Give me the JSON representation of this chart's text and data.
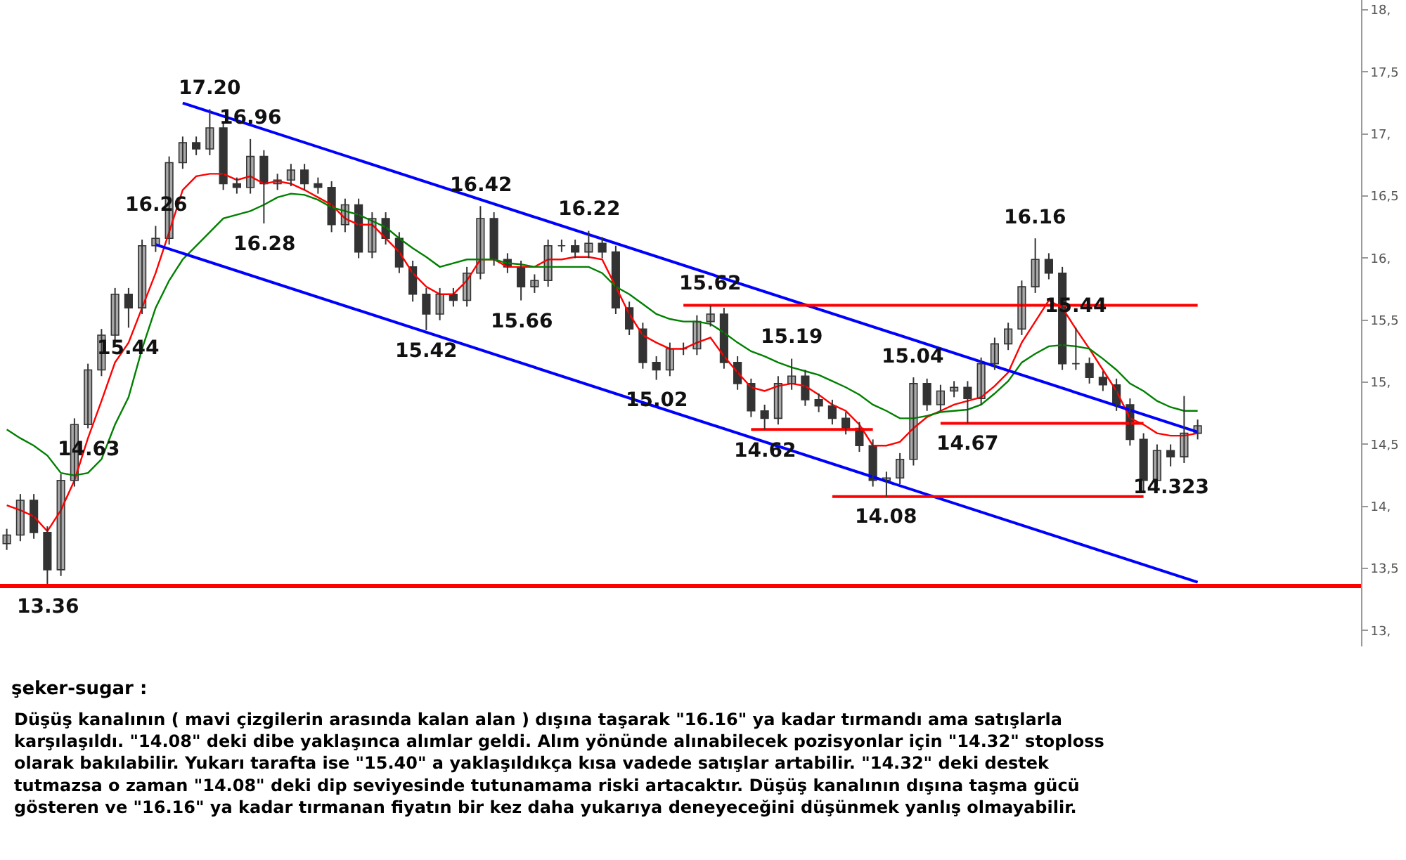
{
  "chart_data": {
    "type": "candlestick",
    "title": "şeker-sugar :",
    "categories": [
      null,
      null,
      null,
      null,
      null,
      null,
      null,
      null,
      null,
      null,
      null,
      null,
      null,
      null,
      null,
      null,
      null,
      null,
      null,
      null,
      null,
      null,
      null,
      null,
      null,
      null,
      null,
      null,
      null,
      null,
      null,
      null,
      null,
      null,
      null,
      null,
      null,
      null,
      null,
      null,
      null,
      null,
      null,
      null,
      null,
      null,
      null,
      null,
      null,
      null,
      null,
      null,
      null,
      null,
      null,
      null,
      null,
      null,
      null,
      null,
      null,
      null,
      null,
      null,
      null,
      null,
      null,
      null,
      null,
      null,
      null,
      null,
      null,
      null,
      null,
      null,
      null,
      null,
      null,
      null,
      null,
      null,
      null,
      null,
      null,
      null,
      null,
      null,
      null
    ],
    "color": "#333333",
    "ohlc": [
      [
        13.7,
        13.82,
        13.65,
        13.77
      ],
      [
        13.77,
        14.1,
        13.72,
        14.05
      ],
      [
        14.05,
        14.1,
        13.74,
        13.79
      ],
      [
        13.79,
        13.84,
        13.36,
        13.49
      ],
      [
        13.49,
        14.26,
        13.44,
        14.21
      ],
      [
        14.21,
        14.71,
        14.16,
        14.66
      ],
      [
        14.66,
        15.15,
        14.63,
        15.1
      ],
      [
        15.1,
        15.43,
        15.05,
        15.38
      ],
      [
        15.38,
        15.76,
        15.33,
        15.71
      ],
      [
        15.71,
        15.76,
        15.44,
        15.6
      ],
      [
        15.6,
        16.15,
        15.55,
        16.1
      ],
      [
        16.1,
        16.26,
        16.05,
        16.16
      ],
      [
        16.16,
        16.82,
        16.11,
        16.77
      ],
      [
        16.77,
        16.98,
        16.72,
        16.93
      ],
      [
        16.93,
        16.98,
        16.83,
        16.88
      ],
      [
        16.88,
        17.2,
        16.83,
        17.05
      ],
      [
        17.05,
        17.1,
        16.55,
        16.6
      ],
      [
        16.6,
        16.65,
        16.52,
        16.57
      ],
      [
        16.57,
        16.96,
        16.52,
        16.82
      ],
      [
        16.82,
        16.87,
        16.28,
        16.6
      ],
      [
        16.6,
        16.68,
        16.55,
        16.63
      ],
      [
        16.63,
        16.76,
        16.58,
        16.71
      ],
      [
        16.71,
        16.76,
        16.55,
        16.6
      ],
      [
        16.6,
        16.65,
        16.52,
        16.57
      ],
      [
        16.57,
        16.62,
        16.21,
        16.27
      ],
      [
        16.27,
        16.48,
        16.21,
        16.43
      ],
      [
        16.43,
        16.48,
        16.0,
        16.05
      ],
      [
        16.05,
        16.37,
        16.0,
        16.32
      ],
      [
        16.32,
        16.37,
        16.11,
        16.16
      ],
      [
        16.16,
        16.21,
        15.88,
        15.93
      ],
      [
        15.93,
        15.98,
        15.65,
        15.71
      ],
      [
        15.71,
        15.76,
        15.42,
        15.55
      ],
      [
        15.55,
        15.76,
        15.5,
        15.71
      ],
      [
        15.71,
        15.76,
        15.61,
        15.66
      ],
      [
        15.66,
        15.93,
        15.61,
        15.88
      ],
      [
        15.88,
        16.42,
        15.83,
        16.32
      ],
      [
        16.32,
        16.37,
        15.94,
        15.99
      ],
      [
        15.99,
        16.04,
        15.88,
        15.93
      ],
      [
        15.93,
        15.98,
        15.66,
        15.77
      ],
      [
        15.77,
        15.87,
        15.72,
        15.82
      ],
      [
        15.82,
        16.15,
        15.77,
        16.1
      ],
      [
        16.1,
        16.15,
        16.05,
        16.1
      ],
      [
        16.1,
        16.15,
        16.0,
        16.05
      ],
      [
        16.05,
        16.22,
        16.0,
        16.12
      ],
      [
        16.12,
        16.17,
        16.0,
        16.05
      ],
      [
        16.05,
        16.1,
        15.55,
        15.6
      ],
      [
        15.6,
        15.65,
        15.38,
        15.43
      ],
      [
        15.43,
        15.48,
        15.11,
        15.16
      ],
      [
        15.16,
        15.21,
        15.02,
        15.1
      ],
      [
        15.1,
        15.32,
        15.05,
        15.27
      ],
      [
        15.27,
        15.32,
        15.22,
        15.27
      ],
      [
        15.27,
        15.54,
        15.22,
        15.49
      ],
      [
        15.49,
        15.62,
        15.45,
        15.55
      ],
      [
        15.55,
        15.6,
        15.11,
        15.16
      ],
      [
        15.16,
        15.21,
        14.94,
        14.99
      ],
      [
        14.99,
        15.03,
        14.72,
        14.77
      ],
      [
        14.77,
        14.82,
        14.62,
        14.71
      ],
      [
        14.71,
        15.05,
        14.66,
        14.99
      ],
      [
        14.99,
        15.19,
        14.94,
        15.05
      ],
      [
        15.05,
        15.1,
        14.81,
        14.86
      ],
      [
        14.86,
        14.91,
        14.76,
        14.81
      ],
      [
        14.81,
        14.86,
        14.66,
        14.71
      ],
      [
        14.71,
        14.76,
        14.58,
        14.63
      ],
      [
        14.63,
        14.68,
        14.44,
        14.49
      ],
      [
        14.49,
        14.54,
        14.16,
        14.21
      ],
      [
        14.21,
        14.28,
        14.08,
        14.23
      ],
      [
        14.23,
        14.43,
        14.18,
        14.38
      ],
      [
        14.38,
        15.04,
        14.33,
        14.99
      ],
      [
        14.99,
        15.03,
        14.77,
        14.82
      ],
      [
        14.82,
        14.98,
        14.77,
        14.93
      ],
      [
        14.93,
        15.01,
        14.88,
        14.96
      ],
      [
        14.96,
        15.01,
        14.67,
        14.87
      ],
      [
        14.87,
        15.2,
        14.82,
        15.15
      ],
      [
        15.15,
        15.36,
        15.1,
        15.31
      ],
      [
        15.31,
        15.48,
        15.26,
        15.43
      ],
      [
        15.43,
        15.82,
        15.38,
        15.77
      ],
      [
        15.77,
        16.16,
        15.72,
        15.99
      ],
      [
        15.99,
        16.04,
        15.83,
        15.88
      ],
      [
        15.88,
        15.93,
        15.1,
        15.15
      ],
      [
        15.15,
        15.44,
        15.1,
        15.15
      ],
      [
        15.15,
        15.2,
        14.99,
        15.04
      ],
      [
        15.04,
        15.09,
        14.93,
        14.98
      ],
      [
        14.98,
        15.03,
        14.77,
        14.82
      ],
      [
        14.82,
        14.87,
        14.49,
        14.54
      ],
      [
        14.54,
        14.59,
        14.12,
        14.21
      ],
      [
        14.21,
        14.5,
        14.16,
        14.45
      ],
      [
        14.45,
        14.5,
        14.323,
        14.4
      ],
      [
        14.4,
        14.89,
        14.35,
        14.59
      ],
      [
        14.59,
        14.7,
        14.54,
        14.65
      ]
    ],
    "series": [
      {
        "type": "line",
        "color": "#ff0000",
        "values": [
          14.01,
          13.97,
          13.92,
          13.8,
          13.97,
          14.21,
          14.55,
          14.85,
          15.16,
          15.32,
          15.6,
          15.88,
          16.21,
          16.55,
          16.66,
          16.68,
          16.68,
          16.63,
          16.66,
          16.6,
          16.62,
          16.6,
          16.55,
          16.49,
          16.43,
          16.32,
          16.27,
          16.27,
          16.16,
          16.05,
          15.88,
          15.77,
          15.71,
          15.71,
          15.82,
          15.99,
          15.99,
          15.93,
          15.93,
          15.93,
          15.99,
          15.99,
          16.01,
          16.01,
          15.99,
          15.77,
          15.55,
          15.38,
          15.32,
          15.27,
          15.27,
          15.32,
          15.36,
          15.21,
          15.08,
          14.96,
          14.93,
          14.97,
          14.99,
          14.97,
          14.9,
          14.82,
          14.77,
          14.66,
          14.49,
          14.49,
          14.52,
          14.63,
          14.72,
          14.77,
          14.82,
          14.85,
          14.88,
          14.97,
          15.08,
          15.32,
          15.49,
          15.66,
          15.6,
          15.43,
          15.27,
          15.1,
          14.93,
          14.71,
          14.66,
          14.59,
          14.57,
          14.57,
          14.59
        ]
      },
      {
        "type": "line",
        "color": "#008000",
        "values": [
          14.62,
          14.55,
          14.49,
          14.41,
          14.27,
          14.25,
          14.27,
          14.38,
          14.66,
          14.88,
          15.27,
          15.6,
          15.82,
          15.99,
          16.1,
          16.21,
          16.32,
          16.35,
          16.38,
          16.43,
          16.49,
          16.52,
          16.51,
          16.47,
          16.41,
          16.38,
          16.35,
          16.3,
          16.25,
          16.16,
          16.08,
          16.01,
          15.93,
          15.96,
          15.99,
          15.99,
          15.99,
          15.96,
          15.95,
          15.93,
          15.93,
          15.93,
          15.93,
          15.93,
          15.88,
          15.77,
          15.71,
          15.63,
          15.55,
          15.51,
          15.49,
          15.49,
          15.47,
          15.4,
          15.32,
          15.25,
          15.21,
          15.16,
          15.12,
          15.09,
          15.06,
          15.01,
          14.96,
          14.9,
          14.82,
          14.77,
          14.71,
          14.71,
          14.73,
          14.76,
          14.77,
          14.78,
          14.82,
          14.91,
          15.01,
          15.16,
          15.23,
          15.29,
          15.3,
          15.29,
          15.27,
          15.19,
          15.1,
          14.99,
          14.93,
          14.85,
          14.8,
          14.77,
          14.77
        ]
      },
      {
        "type": "line",
        "color": "#0000ff",
        "values": [
          null,
          null,
          null,
          null,
          null,
          null,
          null,
          null,
          null,
          null,
          null,
          null,
          null,
          17.25,
          null,
          null,
          null,
          null,
          null,
          null,
          null,
          null,
          null,
          null,
          null,
          null,
          null,
          null,
          null,
          null,
          null,
          null,
          null,
          null,
          null,
          null,
          null,
          null,
          null,
          null,
          null,
          null,
          null,
          null,
          null,
          null,
          null,
          null,
          null,
          null,
          null,
          null,
          null,
          null,
          null,
          null,
          null,
          null,
          null,
          null,
          null,
          null,
          null,
          null,
          null,
          null,
          null,
          null,
          null,
          null,
          null,
          null,
          null,
          null,
          null,
          null,
          null,
          null,
          null,
          null,
          null,
          null,
          null,
          null,
          null,
          null,
          null,
          null,
          14.6
        ]
      },
      {
        "type": "line",
        "color": "#0000ff",
        "values": [
          null,
          null,
          null,
          null,
          null,
          null,
          null,
          null,
          null,
          null,
          null,
          16.11,
          null,
          null,
          null,
          null,
          null,
          null,
          null,
          null,
          null,
          null,
          null,
          null,
          null,
          null,
          null,
          null,
          null,
          null,
          null,
          null,
          null,
          null,
          null,
          null,
          null,
          null,
          null,
          null,
          null,
          null,
          null,
          null,
          null,
          null,
          null,
          null,
          null,
          null,
          null,
          null,
          null,
          null,
          null,
          null,
          null,
          null,
          null,
          null,
          null,
          null,
          null,
          null,
          null,
          null,
          null,
          null,
          null,
          null,
          null,
          null,
          null,
          null,
          null,
          null,
          null,
          null,
          null,
          null,
          null,
          null,
          null,
          null,
          null,
          null,
          null,
          null,
          13.39
        ]
      },
      {
        "type": "line",
        "color": "#ff0000",
        "values": [
          null,
          null,
          null,
          null,
          null,
          null,
          null,
          null,
          null,
          null,
          null,
          null,
          null,
          null,
          null,
          null,
          null,
          null,
          null,
          null,
          null,
          null,
          null,
          null,
          null,
          null,
          null,
          null,
          null,
          null,
          null,
          null,
          null,
          null,
          null,
          null,
          null,
          null,
          null,
          null,
          null,
          null,
          null,
          null,
          null,
          null,
          null,
          null,
          null,
          null,
          15.62,
          null,
          null,
          null,
          null,
          null,
          null,
          null,
          null,
          null,
          null,
          null,
          null,
          null,
          null,
          null,
          null,
          null,
          null,
          null,
          null,
          null,
          null,
          null,
          null,
          null,
          null,
          null,
          null,
          null,
          null,
          null,
          null,
          null,
          null,
          null,
          null,
          null,
          15.62
        ]
      },
      {
        "type": "line",
        "color": "#ff0000",
        "values": [
          null,
          null,
          null,
          null,
          null,
          null,
          null,
          null,
          null,
          null,
          null,
          null,
          null,
          null,
          null,
          null,
          null,
          null,
          null,
          null,
          null,
          null,
          null,
          null,
          null,
          null,
          null,
          null,
          null,
          null,
          null,
          null,
          null,
          null,
          null,
          null,
          null,
          null,
          null,
          null,
          null,
          null,
          null,
          null,
          null,
          null,
          null,
          null,
          null,
          null,
          null,
          null,
          null,
          null,
          null,
          14.62,
          null,
          null,
          null,
          null,
          null,
          null,
          null,
          null,
          14.62,
          null,
          null,
          null,
          null,
          null,
          null,
          null,
          null,
          null,
          null,
          null,
          null,
          null,
          null,
          null,
          null,
          null,
          null,
          null,
          null,
          null,
          null,
          null,
          null
        ]
      },
      {
        "type": "line",
        "color": "#ff0000",
        "values": [
          null,
          null,
          null,
          null,
          null,
          null,
          null,
          null,
          null,
          null,
          null,
          null,
          null,
          null,
          null,
          null,
          null,
          null,
          null,
          null,
          null,
          null,
          null,
          null,
          null,
          null,
          null,
          null,
          null,
          null,
          null,
          null,
          null,
          null,
          null,
          null,
          null,
          null,
          null,
          null,
          null,
          null,
          null,
          null,
          null,
          null,
          null,
          null,
          null,
          null,
          null,
          null,
          null,
          null,
          null,
          null,
          null,
          null,
          null,
          null,
          null,
          null,
          null,
          null,
          null,
          null,
          null,
          null,
          null,
          14.67,
          null,
          null,
          null,
          null,
          null,
          null,
          null,
          null,
          null,
          null,
          null,
          null,
          null,
          null,
          14.67,
          null,
          null,
          null,
          null
        ]
      },
      {
        "type": "line",
        "color": "#ff0000",
        "values": [
          null,
          null,
          null,
          null,
          null,
          null,
          null,
          null,
          null,
          null,
          null,
          null,
          null,
          null,
          null,
          null,
          null,
          null,
          null,
          null,
          null,
          null,
          null,
          null,
          null,
          null,
          null,
          null,
          null,
          null,
          null,
          null,
          null,
          null,
          null,
          null,
          null,
          null,
          null,
          null,
          null,
          null,
          null,
          null,
          null,
          null,
          null,
          null,
          null,
          null,
          null,
          null,
          null,
          null,
          null,
          null,
          null,
          null,
          null,
          null,
          null,
          14.08,
          null,
          null,
          null,
          null,
          null,
          null,
          null,
          null,
          null,
          null,
          null,
          null,
          null,
          null,
          null,
          null,
          null,
          null,
          null,
          null,
          null,
          null,
          14.08,
          null,
          null,
          null,
          null
        ]
      }
    ],
    "ref_lines": [
      {
        "axis": "y",
        "value": 13.36,
        "color": "#ff0000"
      }
    ],
    "ylim": [
      12.87,
      18.08
    ],
    "yticks": [
      {
        "value": 13,
        "label": "13,"
      },
      {
        "value": 13.5,
        "label": "13,5"
      },
      {
        "value": 14,
        "label": "14,"
      },
      {
        "value": 14.5,
        "label": "14,5"
      },
      {
        "value": 15,
        "label": "15,"
      },
      {
        "value": 15.5,
        "label": "15,5"
      },
      {
        "value": 16,
        "label": "16,"
      },
      {
        "value": 16.5,
        "label": "16,5"
      },
      {
        "value": 17,
        "label": "17,"
      },
      {
        "value": 17.5,
        "label": "17,5"
      },
      {
        "value": 18,
        "label": "18,"
      }
    ],
    "tick_labels": "y",
    "annotations": [
      {
        "text": "17.20",
        "y": 17.2
      },
      {
        "text": "16.96",
        "y": 16.96
      },
      {
        "text": "16.26",
        "y": 16.26
      },
      {
        "text": "15.44",
        "y": 15.44
      },
      {
        "text": "16.28",
        "y": 16.28
      },
      {
        "text": "14.63",
        "y": 14.63
      },
      {
        "text": "13.36",
        "y": 13.36
      },
      {
        "text": "15.42",
        "y": 15.42
      },
      {
        "text": "16.42",
        "y": 16.42
      },
      {
        "text": "16.22",
        "y": 16.22
      },
      {
        "text": "15.66",
        "y": 15.66
      },
      {
        "text": "15.62",
        "y": 15.62
      },
      {
        "text": "15.02",
        "y": 15.02
      },
      {
        "text": "15.19",
        "y": 15.19
      },
      {
        "text": "14.62",
        "y": 14.62
      },
      {
        "text": "15.04",
        "y": 15.04
      },
      {
        "text": "14.67",
        "y": 14.67
      },
      {
        "text": "14.08",
        "y": 14.08
      },
      {
        "text": "16.16",
        "y": 16.16
      },
      {
        "text": "15.44",
        "y": 15.44
      },
      {
        "text": "14.323",
        "y": 14.323
      },
      "Düşüş kanalının ( mavi çizgilerin arasında kalan alan ) dışına taşarak \"16.16\" ya kadar tırmandı ama satışlarla\nkarşılaşıldı. \"14.08\" deki dibe yaklaşınca alımlar geldi. Alım yönünde alınabilecek pozisyonlar için \"14.32\" stoploss\nolarak bakılabilir. Yukarı tarafta ise \"15.40\" a yaklaşıldıkça kısa vadede satışlar artabilir. \"14.32\" deki destek\ntutmazsa o zaman \"14.08\" deki dip seviyesinde tutunamama riski artacaktır. Düşüş kanalının dışına taşma gücü\ngösteren ve \"16.16\" ya kadar tırmanan fiyatın bir kez daha yukarıya deneyeceğini düşünmek yanlış olmayabilir."
    ]
  }
}
